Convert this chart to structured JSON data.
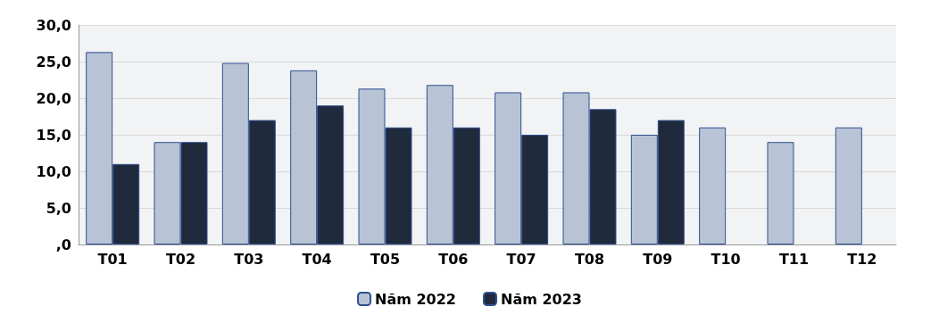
{
  "chart_data": {
    "type": "bar",
    "categories": [
      "T01",
      "T02",
      "T03",
      "T04",
      "T05",
      "T06",
      "T07",
      "T08",
      "T09",
      "T10",
      "T11",
      "T12"
    ],
    "series": [
      {
        "name": "Năm 2022",
        "color": "#b8c4d6",
        "values": [
          26.3,
          14,
          24.8,
          23.8,
          21.3,
          21.8,
          20.8,
          20.8,
          15,
          16,
          14,
          16
        ]
      },
      {
        "name": "Năm 2023",
        "color": "#1f2a3c",
        "values": [
          11,
          14,
          17,
          19,
          16,
          16,
          15,
          18.5,
          17,
          null,
          null,
          null
        ]
      }
    ],
    "ylim": [
      0,
      30
    ],
    "yticks": [
      {
        "value": 0,
        "label": ",0"
      },
      {
        "value": 5,
        "label": "5,0"
      },
      {
        "value": 10,
        "label": "10,0"
      },
      {
        "value": 15,
        "label": "15,0"
      },
      {
        "value": 20,
        "label": "20,0"
      },
      {
        "value": 25,
        "label": "25,0"
      },
      {
        "value": 30,
        "label": "30,0"
      }
    ],
    "grid": "y",
    "legend": "bottom"
  }
}
